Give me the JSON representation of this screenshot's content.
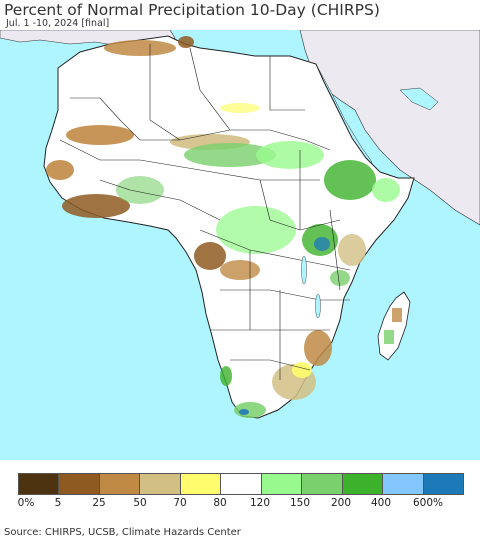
{
  "header": {
    "title": "Percent of Normal Precipitation 10-Day (CHIRPS)",
    "subtitle": "Jul. 1 -10, 2024 [final]"
  },
  "colors": {
    "ocean": "#aef5ff",
    "land_other": "#ede9f0",
    "border": "#222222"
  },
  "legend": {
    "swatches": [
      "#4e3311",
      "#8f5a22",
      "#c08a45",
      "#d2bf84",
      "#fdfd6d",
      "#ffffff",
      "#98fa8e",
      "#79d06c",
      "#3cb12b",
      "#84c7ff",
      "#1e79b9"
    ],
    "labels": [
      "0%",
      "5",
      "25",
      "50",
      "70",
      "80",
      "120",
      "150",
      "200",
      "400",
      "600%"
    ]
  },
  "footer": {
    "source": "Source: CHIRPS, UCSB, Climate Hazards Center"
  }
}
